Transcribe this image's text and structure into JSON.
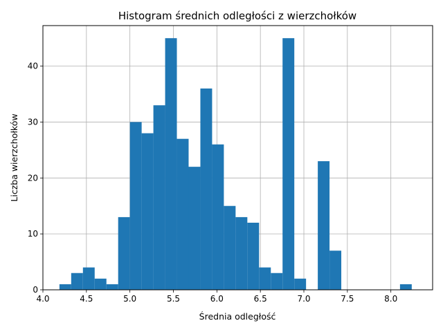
{
  "chart_data": {
    "type": "bar",
    "title": "Histogram średnich odległości z wierzchołków",
    "xlabel": "Średnia odległość",
    "ylabel": "Liczba wierzchołków",
    "xlim": [
      4.0,
      8.48
    ],
    "ylim": [
      0,
      47.25
    ],
    "xticks": [
      4.0,
      4.5,
      5.0,
      5.5,
      6.0,
      6.5,
      7.0,
      7.5,
      8.0
    ],
    "xtick_labels": [
      "4.0",
      "4.5",
      "5.0",
      "5.5",
      "6.0",
      "6.5",
      "7.0",
      "7.5",
      "8.0"
    ],
    "yticks": [
      0,
      10,
      20,
      30,
      40
    ],
    "ytick_labels": [
      "0",
      "10",
      "20",
      "30",
      "40"
    ],
    "grid": true,
    "bin_start": 4.19,
    "bin_width": 0.135,
    "counts": [
      1,
      3,
      4,
      2,
      1,
      13,
      30,
      28,
      33,
      45,
      27,
      22,
      36,
      26,
      15,
      13,
      12,
      4,
      3,
      45,
      2,
      0,
      23,
      7,
      0,
      0,
      0,
      0,
      0,
      1
    ],
    "colors": {
      "bar": "#1f77b4",
      "grid": "#b0b0b0",
      "axis": "#000000"
    }
  }
}
